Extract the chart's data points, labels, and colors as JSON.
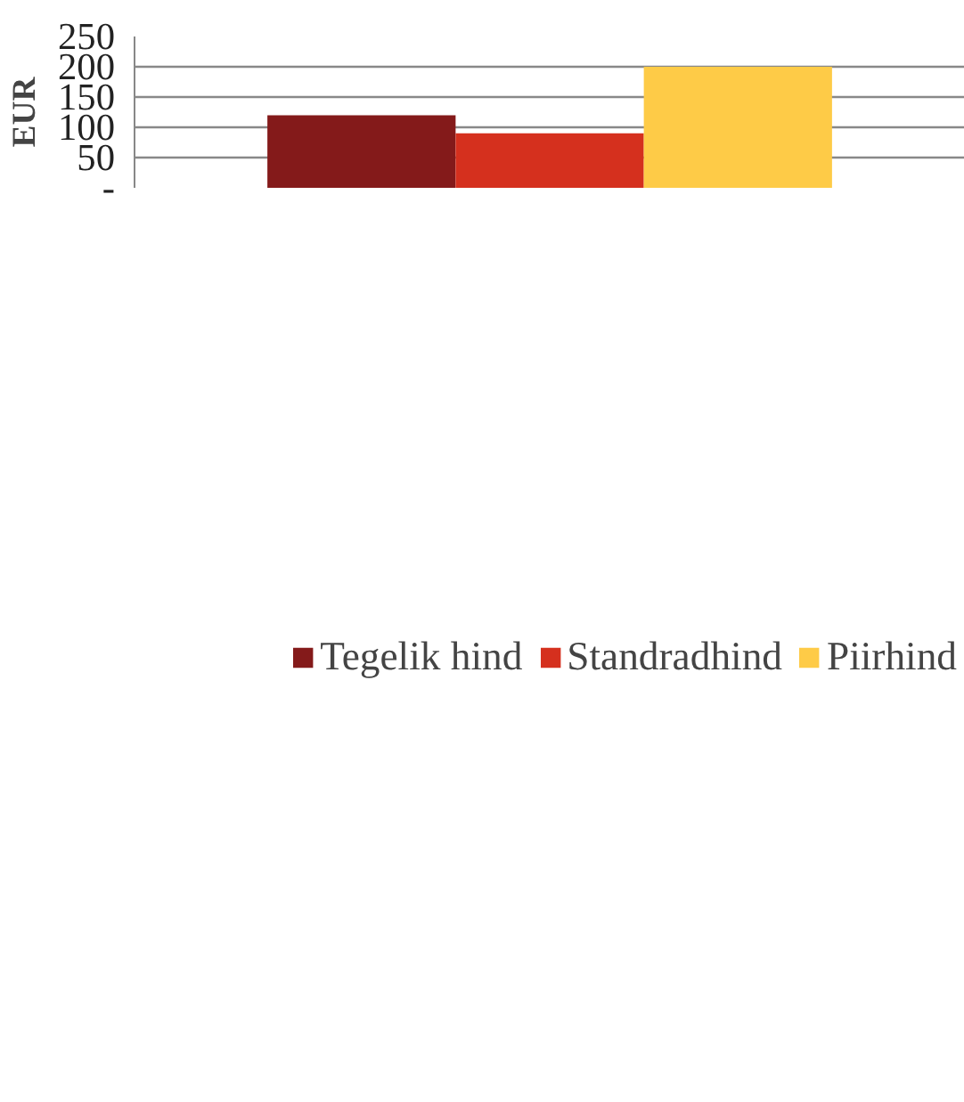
{
  "chart_data": {
    "type": "bar",
    "ylabel": "EUR",
    "categories": [
      null
    ],
    "series": [
      {
        "name": "Tegelik hind",
        "color": "#841a1a",
        "values": [
          120
        ]
      },
      {
        "name": "Standradhind",
        "color": "#d5301e",
        "values": [
          90
        ]
      },
      {
        "name": "Piirhind",
        "color": "#fecb47",
        "values": [
          200
        ]
      }
    ],
    "ylim": [
      0,
      250
    ],
    "yticks": [
      {
        "value": 0,
        "label": "-"
      },
      50,
      100,
      150,
      200,
      250
    ],
    "grid": "y",
    "legend": "bottom",
    "tick_labels": "y"
  }
}
